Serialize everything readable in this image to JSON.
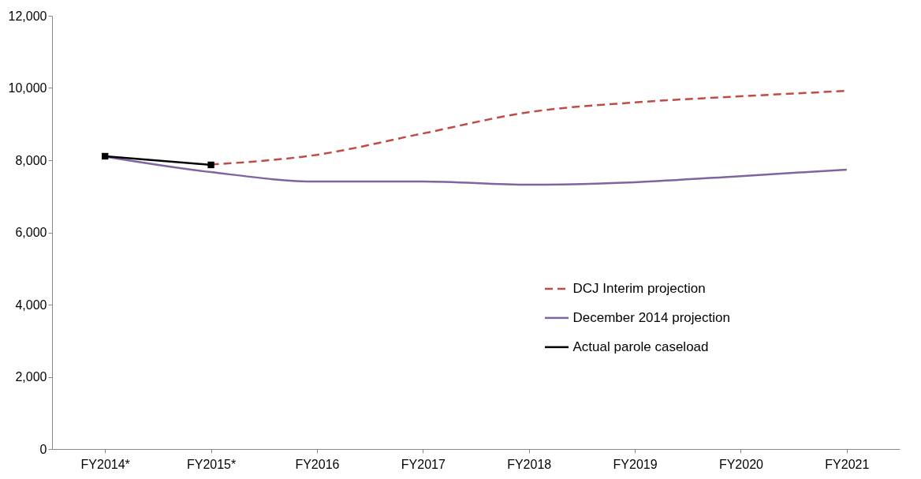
{
  "chart_data": {
    "type": "line",
    "categories": [
      "FY2014*",
      "FY2015*",
      "FY2016",
      "FY2017",
      "FY2018",
      "FY2019",
      "FY2020",
      "FY2021"
    ],
    "series": [
      {
        "name": "DCJ Interim projection",
        "color": "#be4b48",
        "line_style": "dashed",
        "marker": "none",
        "values": [
          null,
          7880,
          8150,
          8740,
          9330,
          9600,
          9770,
          9920
        ]
      },
      {
        "name": "December 2014 projection",
        "color": "#7f64a2",
        "line_style": "solid",
        "marker": "none",
        "values": [
          8100,
          7670,
          7410,
          7410,
          7320,
          7390,
          7560,
          7740
        ]
      },
      {
        "name": "Actual parole caseload",
        "color": "#000000",
        "line_style": "solid",
        "marker": "square",
        "values": [
          8110,
          7870,
          null,
          null,
          null,
          null,
          null,
          null
        ]
      }
    ],
    "ylim": [
      0,
      12000
    ],
    "yticks": [
      0,
      {
        "value": 2000,
        "label": "2,000"
      },
      {
        "value": 4000,
        "label": "4,000"
      },
      {
        "value": 6000,
        "label": "6,000"
      },
      {
        "value": 8000,
        "label": "8,000"
      },
      {
        "value": 10000,
        "label": "10,000"
      },
      {
        "value": 12000,
        "label": "12,000"
      }
    ],
    "grid": false,
    "legend": "right"
  }
}
